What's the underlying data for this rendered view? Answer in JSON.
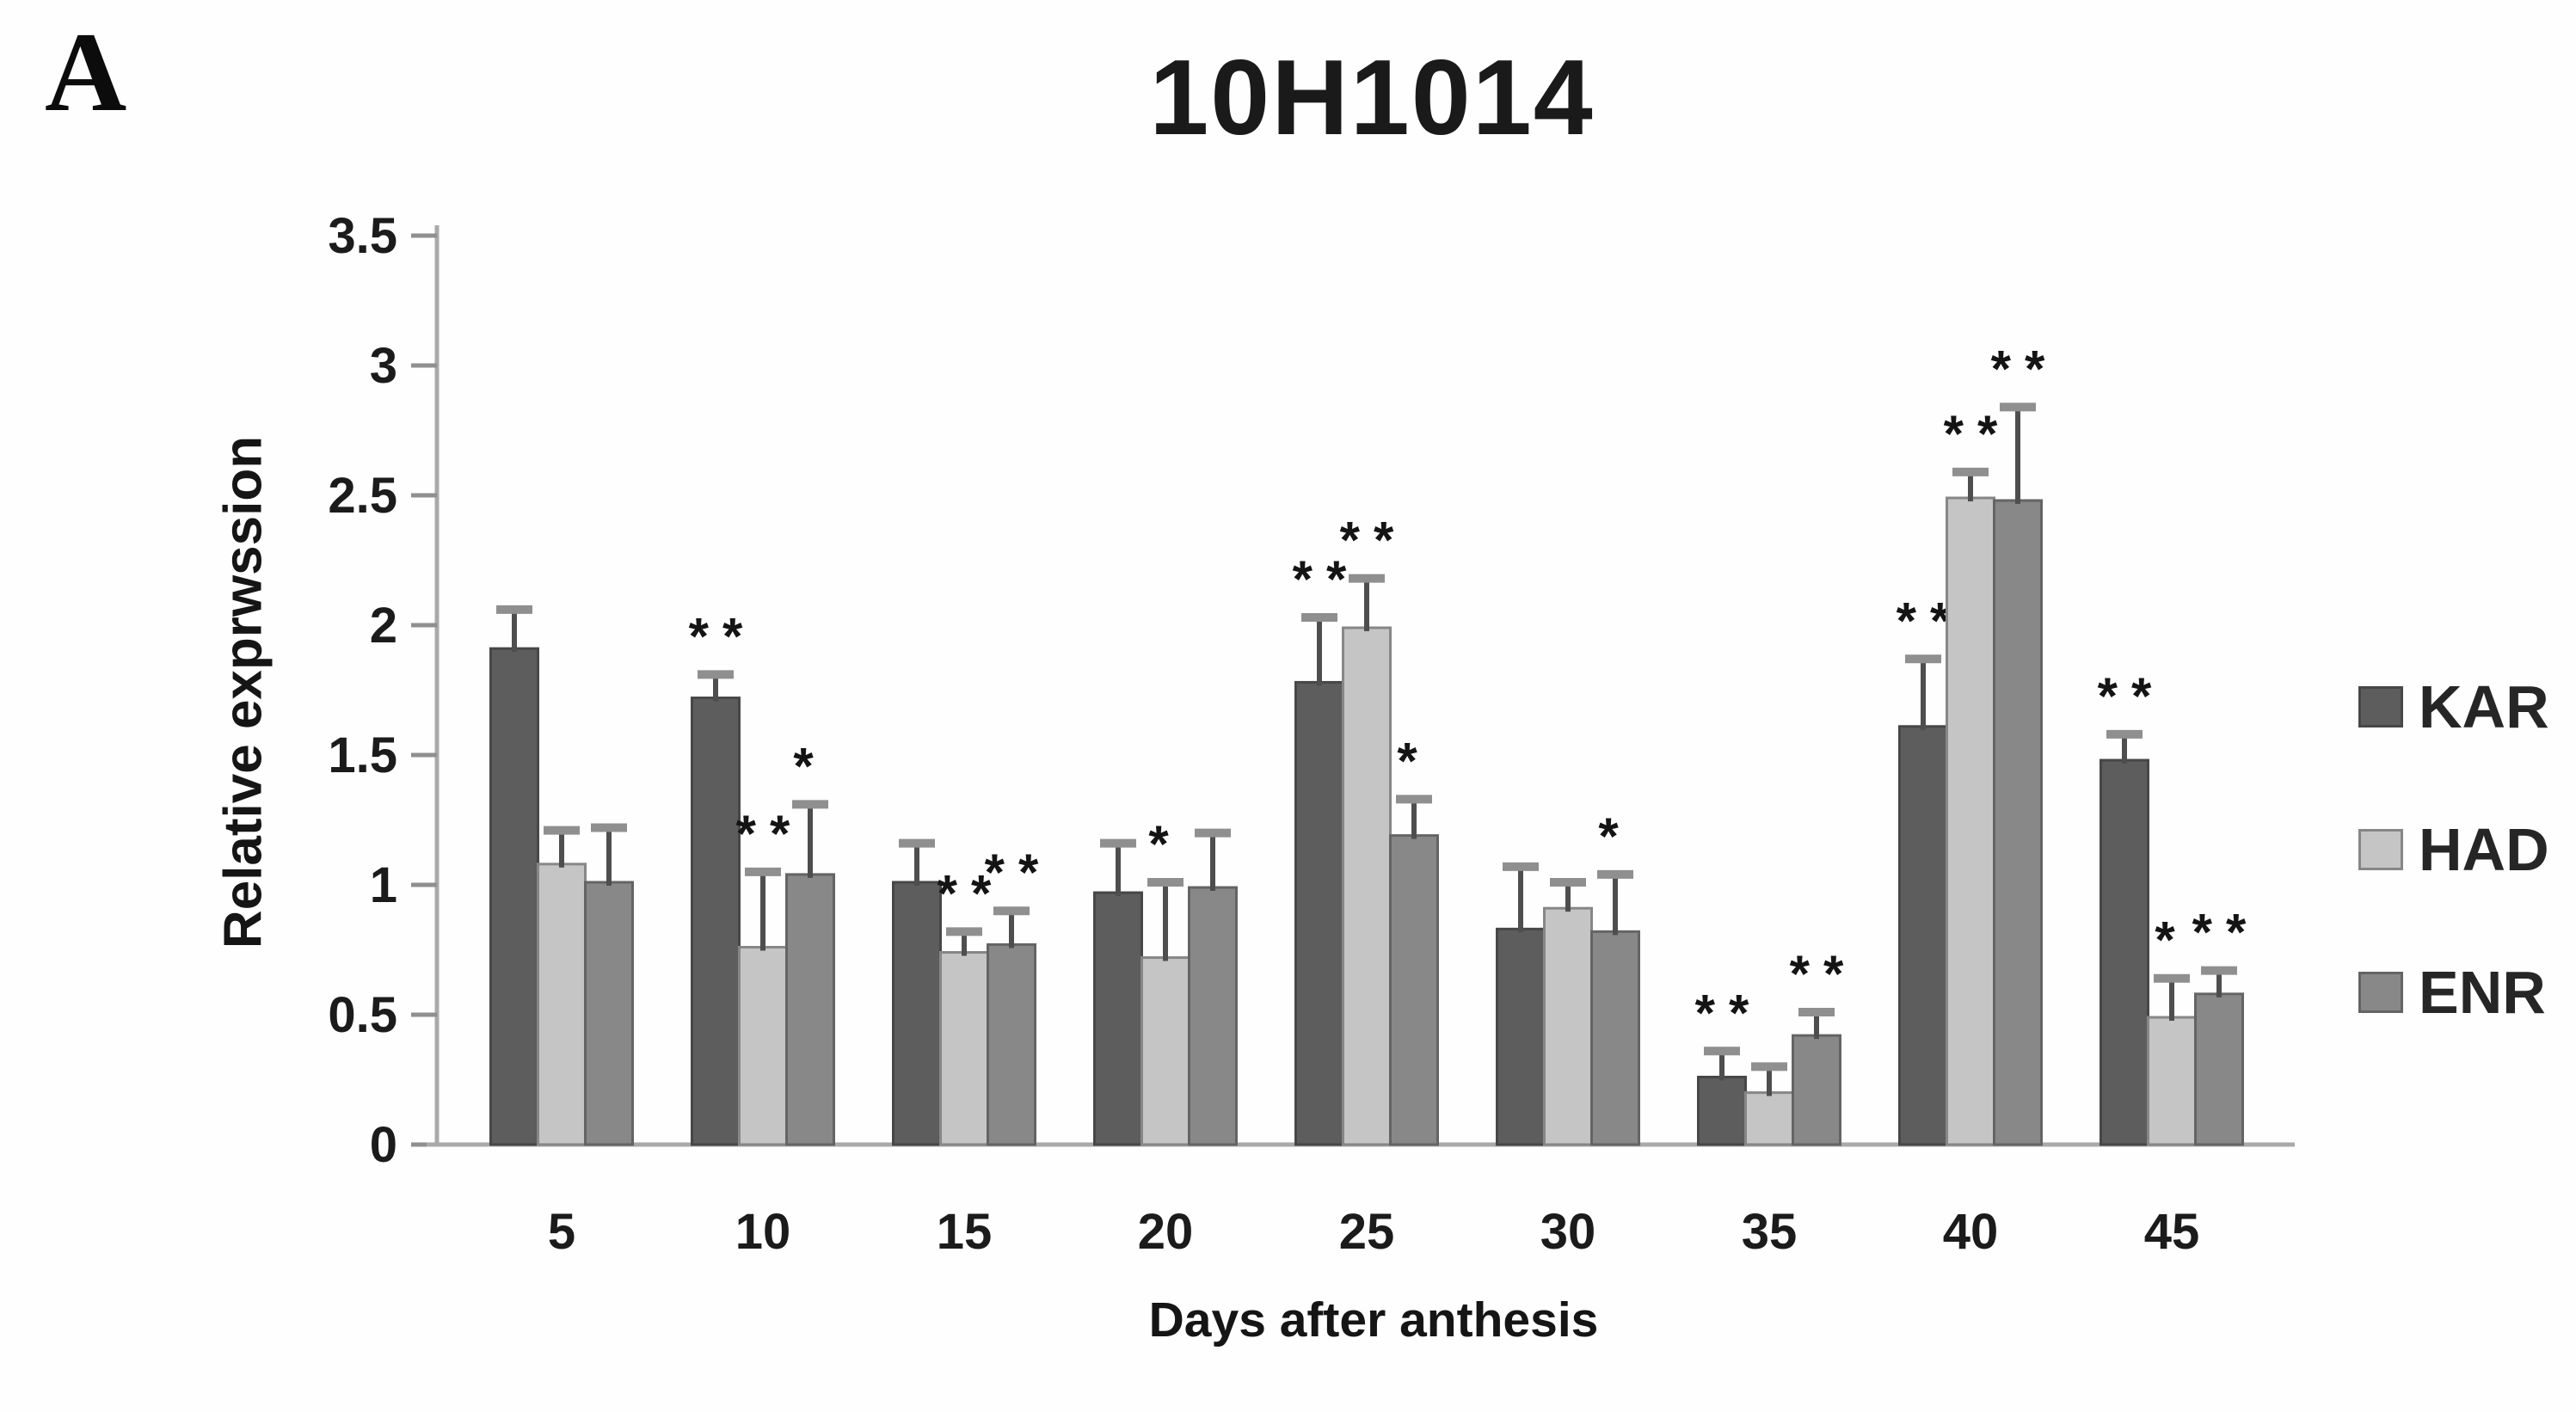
{
  "panel_label": "A",
  "chart_data": {
    "type": "bar",
    "title": "10H1014",
    "xlabel": "Days after anthesis",
    "ylabel": "Relative exprwssion",
    "ylim": [
      0,
      3.5
    ],
    "ytick_step": 0.5,
    "ytick_labels": [
      "0",
      "0.5",
      "1",
      "1.5",
      "2",
      "2.5",
      "3",
      "3.5"
    ],
    "categories": [
      "5",
      "10",
      "15",
      "20",
      "25",
      "30",
      "35",
      "40",
      "45"
    ],
    "grid": false,
    "error_bars": true,
    "legend_position": "right",
    "significance_symbols_meaning": "asterisk-markers-above-error-bars",
    "series": [
      {
        "name": "KAR",
        "color": "#5d5d5d",
        "border": "#474747",
        "values": [
          1.91,
          1.72,
          1.01,
          0.97,
          1.78,
          0.83,
          0.26,
          1.61,
          1.48
        ],
        "errors": [
          0.15,
          0.09,
          0.15,
          0.19,
          0.25,
          0.24,
          0.1,
          0.26,
          0.1
        ],
        "sig": [
          "",
          "**",
          "",
          "",
          "**",
          "",
          "**",
          "**",
          "**"
        ]
      },
      {
        "name": "HAD",
        "color": "#c5c5c5",
        "border": "#878787",
        "values": [
          1.08,
          0.76,
          0.74,
          0.72,
          1.99,
          0.91,
          0.2,
          2.49,
          0.49
        ],
        "errors": [
          0.13,
          0.29,
          0.08,
          0.29,
          0.19,
          0.1,
          0.1,
          0.1,
          0.15
        ],
        "sig": [
          "",
          "**",
          "**",
          "*",
          "**",
          "",
          "",
          "**",
          "*"
        ]
      },
      {
        "name": "ENR",
        "color": "#888888",
        "border": "#646464",
        "values": [
          1.01,
          1.04,
          0.77,
          0.99,
          1.19,
          0.82,
          0.42,
          2.48,
          0.58
        ],
        "errors": [
          0.21,
          0.27,
          0.13,
          0.21,
          0.14,
          0.22,
          0.09,
          0.36,
          0.09
        ],
        "sig": [
          "",
          "*",
          "**",
          "",
          "*",
          "*",
          "**",
          "**",
          "**"
        ]
      }
    ],
    "colors": {
      "axis": "#a9a9a9",
      "tick": "#8f8f8f",
      "tick_text": "#1b1b1b",
      "error_bar": "#4e4e4e",
      "error_cap": "#8f8f8f",
      "sig_marker": "#141414"
    }
  }
}
